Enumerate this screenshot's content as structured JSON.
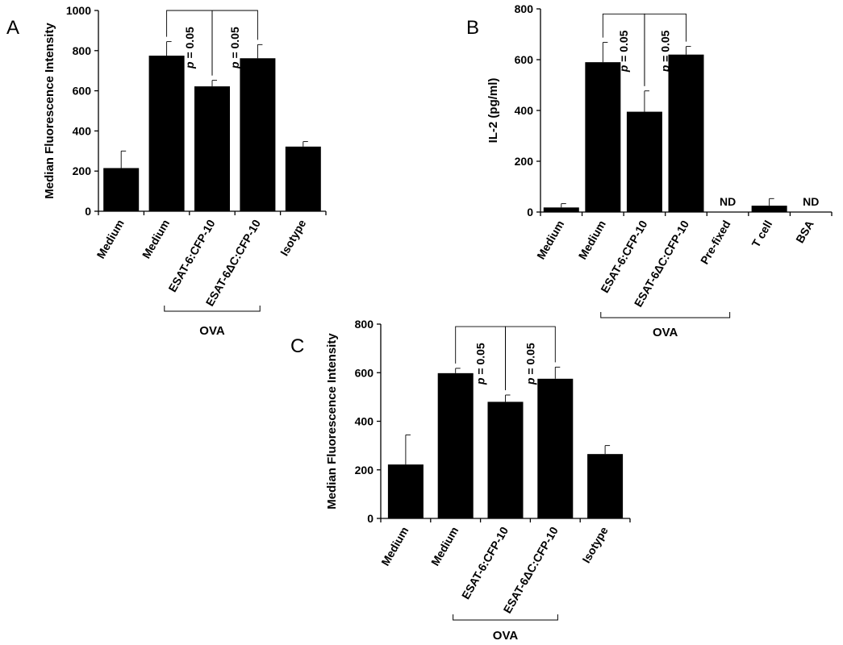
{
  "chart_data": [
    {
      "id": "A",
      "type": "bar",
      "panel_label": "A",
      "ylabel": "Median Fluorescence Intensity",
      "ylim": [
        0,
        1000
      ],
      "yticks": [
        0,
        200,
        400,
        600,
        800,
        1000
      ],
      "categories": [
        "Medium",
        "Medium",
        "ESAT-6:CFP-10",
        "ESAT-6ΔC:CFP-10",
        "Isotype"
      ],
      "values": [
        215,
        775,
        622,
        762,
        322
      ],
      "errors": [
        85,
        70,
        30,
        68,
        25
      ],
      "value_labels": [
        "",
        "",
        "",
        "",
        ""
      ],
      "group": {
        "label": "OVA",
        "from": 1,
        "to": 3
      },
      "brackets": [
        {
          "from": 1,
          "to": 2,
          "text": "p = 0.05",
          "top": 1000
        },
        {
          "from": 2,
          "to": 3,
          "text": "p = 0.05",
          "top": 1000
        }
      ],
      "grid": false,
      "legend": "none"
    },
    {
      "id": "B",
      "type": "bar",
      "panel_label": "B",
      "ylabel": "IL-2 (pg/ml)",
      "ylim": [
        0,
        800
      ],
      "yticks": [
        0,
        200,
        400,
        600,
        800
      ],
      "categories": [
        "Medium",
        "Medium",
        "ESAT-6:CFP-10",
        "ESAT-6ΔC:CFP-10",
        "Pre-fixed",
        "T cell",
        "BSA"
      ],
      "values": [
        18,
        590,
        395,
        620,
        0,
        25,
        0
      ],
      "errors": [
        15,
        78,
        82,
        32,
        0,
        28,
        0
      ],
      "value_labels": [
        "",
        "",
        "",
        "",
        "ND",
        "",
        "ND"
      ],
      "group": {
        "label": "OVA",
        "from": 1,
        "to": 4
      },
      "brackets": [
        {
          "from": 1,
          "to": 2,
          "text": "p = 0.05",
          "top": 780
        },
        {
          "from": 2,
          "to": 3,
          "text": "p = 0.05",
          "top": 780
        }
      ],
      "grid": false,
      "legend": "none"
    },
    {
      "id": "C",
      "type": "bar",
      "panel_label": "C",
      "ylabel": "Median Fluorescence Intensity",
      "ylim": [
        0,
        800
      ],
      "yticks": [
        0,
        200,
        400,
        600,
        800
      ],
      "categories": [
        "Medium",
        "Medium",
        "ESAT-6:CFP-10",
        "ESAT-6ΔC:CFP-10",
        "Isotype"
      ],
      "values": [
        222,
        598,
        480,
        575,
        265
      ],
      "errors": [
        122,
        20,
        28,
        48,
        35
      ],
      "value_labels": [
        "",
        "",
        "",
        "",
        ""
      ],
      "group": {
        "label": "OVA",
        "from": 1,
        "to": 3
      },
      "brackets": [
        {
          "from": 1,
          "to": 2,
          "text": "p = 0.05",
          "top": 790
        },
        {
          "from": 2,
          "to": 3,
          "text": "p = 0.05",
          "top": 790
        }
      ],
      "grid": false,
      "legend": "none"
    }
  ]
}
